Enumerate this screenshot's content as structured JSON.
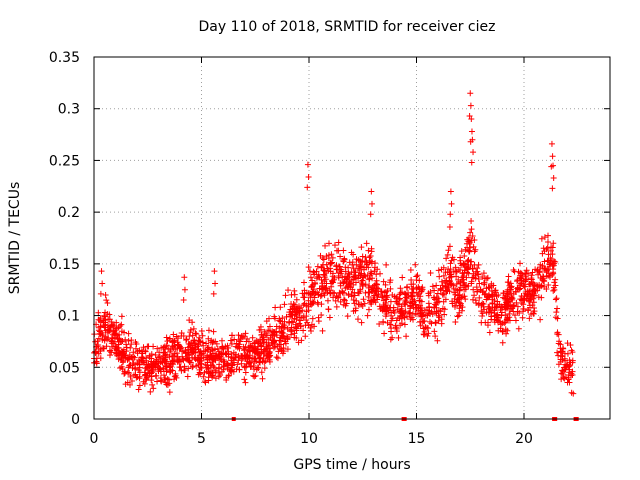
{
  "chart_data": {
    "type": "scatter",
    "title": "Day 110 of 2018, SRMTID for receiver ciez",
    "xlabel": "GPS time / hours",
    "ylabel": "SRMTID / TECUs",
    "xlim": [
      0,
      24
    ],
    "ylim": [
      0,
      0.35
    ],
    "x_ticks": [
      0,
      5,
      10,
      15,
      20
    ],
    "y_ticks": [
      0,
      0.05,
      0.1,
      0.15,
      0.2,
      0.25,
      0.3,
      0.35
    ],
    "x_tick_labels": [
      "0",
      "5",
      "10",
      "15",
      "20"
    ],
    "y_tick_labels": [
      "0",
      "0.05",
      "0.1",
      "0.15",
      "0.2",
      "0.25",
      "0.3",
      "0.35"
    ],
    "grid": true,
    "marker": "+",
    "color": "#ff0000",
    "trend": [
      [
        0.0,
        0.07
      ],
      [
        0.5,
        0.09
      ],
      [
        1.0,
        0.075
      ],
      [
        1.5,
        0.06
      ],
      [
        2.0,
        0.055
      ],
      [
        2.5,
        0.05
      ],
      [
        3.0,
        0.052
      ],
      [
        3.5,
        0.055
      ],
      [
        4.0,
        0.062
      ],
      [
        4.5,
        0.07
      ],
      [
        5.0,
        0.062
      ],
      [
        5.5,
        0.058
      ],
      [
        6.0,
        0.058
      ],
      [
        6.5,
        0.06
      ],
      [
        7.0,
        0.063
      ],
      [
        7.5,
        0.062
      ],
      [
        8.0,
        0.07
      ],
      [
        8.5,
        0.08
      ],
      [
        9.0,
        0.088
      ],
      [
        9.5,
        0.1
      ],
      [
        10.0,
        0.115
      ],
      [
        10.5,
        0.13
      ],
      [
        11.0,
        0.135
      ],
      [
        11.5,
        0.14
      ],
      [
        12.0,
        0.13
      ],
      [
        12.5,
        0.14
      ],
      [
        13.0,
        0.135
      ],
      [
        13.5,
        0.11
      ],
      [
        14.0,
        0.1
      ],
      [
        14.5,
        0.11
      ],
      [
        15.0,
        0.12
      ],
      [
        15.5,
        0.1
      ],
      [
        16.0,
        0.11
      ],
      [
        16.5,
        0.14
      ],
      [
        17.0,
        0.12
      ],
      [
        17.5,
        0.16
      ],
      [
        18.0,
        0.12
      ],
      [
        18.5,
        0.11
      ],
      [
        19.0,
        0.1
      ],
      [
        19.5,
        0.12
      ],
      [
        20.0,
        0.125
      ],
      [
        20.5,
        0.12
      ],
      [
        21.0,
        0.15
      ],
      [
        21.4,
        0.15
      ],
      [
        21.6,
        0.06
      ],
      [
        22.0,
        0.05
      ],
      [
        22.3,
        0.05
      ]
    ],
    "spread": 0.022,
    "points_per_hour": 100,
    "spikes": [
      {
        "x": 9.95,
        "y": 0.246
      },
      {
        "x": 17.5,
        "y": 0.315
      },
      {
        "x": 17.55,
        "y": 0.29
      },
      {
        "x": 17.6,
        "y": 0.27
      },
      {
        "x": 21.3,
        "y": 0.266
      },
      {
        "x": 21.35,
        "y": 0.245
      },
      {
        "x": 16.6,
        "y": 0.22
      },
      {
        "x": 12.9,
        "y": 0.22
      },
      {
        "x": 0.35,
        "y": 0.143
      },
      {
        "x": 4.2,
        "y": 0.137
      },
      {
        "x": 5.6,
        "y": 0.143
      }
    ],
    "zero_points": [
      6.5,
      14.4,
      14.45,
      21.4,
      21.45,
      22.4,
      22.45
    ]
  }
}
